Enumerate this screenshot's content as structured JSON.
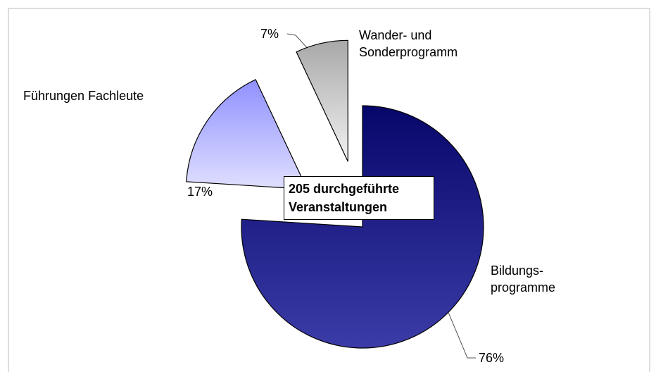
{
  "chart_data": {
    "type": "pie",
    "categories": [
      "Bildungs-\nprogramme",
      "Führungen Fachleute",
      "Wander- und\nSonderprogramm"
    ],
    "values": [
      76,
      17,
      7
    ],
    "value_labels": [
      "76%",
      "17%",
      "7%"
    ],
    "colors": [
      [
        "#06066a",
        "#3c3ca8"
      ],
      [
        "#9090ff",
        "#e0e0ff"
      ],
      [
        "#a8a8a8",
        "#f2f2f2"
      ]
    ],
    "exploded": [
      false,
      true,
      true
    ],
    "annotation": "205 durchgeführte\nVeranstaltungen"
  }
}
